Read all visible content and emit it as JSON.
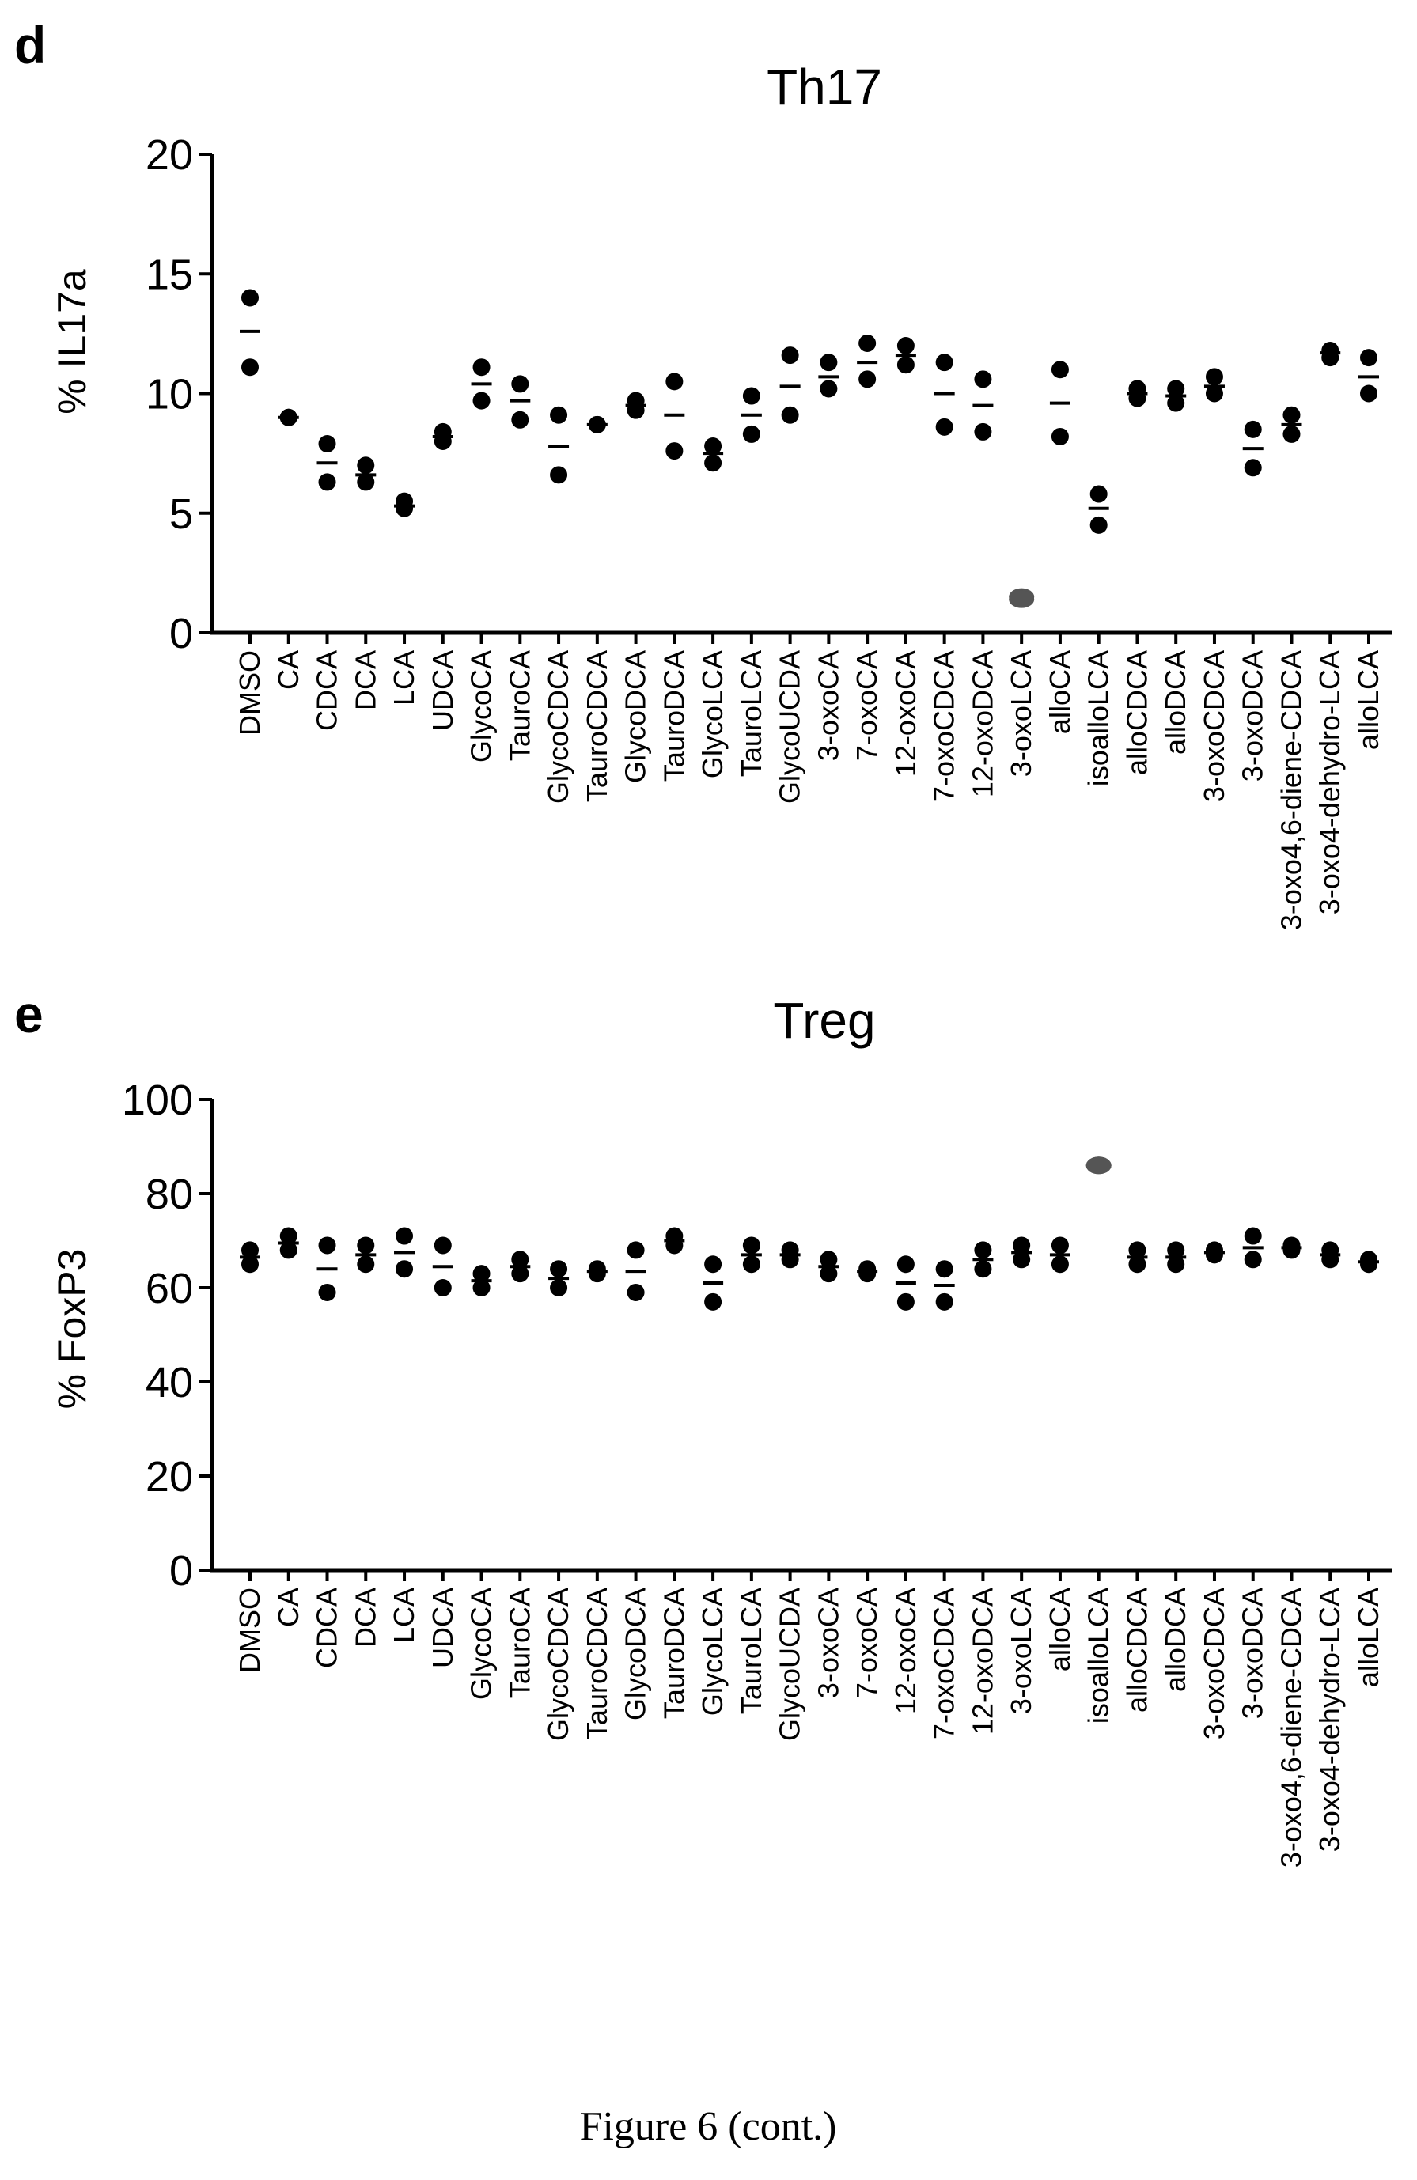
{
  "caption": "Figure 6 (cont.)",
  "chart_data": [
    {
      "panel": "d",
      "type": "scatter",
      "title": "Th17",
      "ylabel": "% IL17a",
      "ylim": [
        0,
        20
      ],
      "yticks": [
        0,
        5,
        10,
        15,
        20
      ],
      "categories": [
        "DMSO",
        "CA",
        "CDCA",
        "DCA",
        "LCA",
        "UDCA",
        "GlycoCA",
        "TauroCA",
        "GlycoCDCA",
        "TauroCDCA",
        "GlycoDCA",
        "TauroDCA",
        "GlycoLCA",
        "TauroLCA",
        "GlycoUCDA",
        "3-oxoCA",
        "7-oxoCA",
        "12-oxoCA",
        "7-oxoCDCA",
        "12-oxoDCA",
        "3-oxoLCA",
        "alloCA",
        "isoalloLCA",
        "alloCDCA",
        "alloDCA",
        "3-oxoCDCA",
        "3-oxoDCA",
        "3-oxo4,6-diene-CDCA",
        "3-oxo4-dehydro-LCA",
        "alloLCA"
      ],
      "highlight": [
        "3-oxoLCA"
      ],
      "highlight_color": "#555555",
      "series": [
        {
          "values": [
            [
              14.0,
              11.1
            ],
            [
              9.0,
              9.0
            ],
            [
              7.9,
              6.3
            ],
            [
              7.0,
              6.3
            ],
            [
              5.5,
              5.2
            ],
            [
              8.4,
              8.0
            ],
            [
              11.1,
              9.7
            ],
            [
              10.4,
              8.9
            ],
            [
              9.1,
              6.6
            ],
            [
              8.7,
              8.7
            ],
            [
              9.7,
              9.3
            ],
            [
              10.5,
              7.6
            ],
            [
              7.8,
              7.1
            ],
            [
              9.9,
              8.3
            ],
            [
              11.6,
              9.1
            ],
            [
              11.3,
              10.2
            ],
            [
              12.1,
              10.6
            ],
            [
              12.0,
              11.2
            ],
            [
              11.3,
              8.6
            ],
            [
              10.6,
              8.4
            ],
            [
              1.5,
              1.4
            ],
            [
              11.0,
              8.2
            ],
            [
              5.8,
              4.5
            ],
            [
              10.2,
              9.8
            ],
            [
              10.2,
              9.6
            ],
            [
              10.7,
              10.0
            ],
            [
              8.5,
              6.9
            ],
            [
              9.1,
              8.3
            ],
            [
              11.8,
              11.5
            ],
            [
              11.5,
              10.0
            ]
          ]
        },
        {
          "name": "",
          "values": [
            12.6,
            9.0,
            7.1,
            6.6,
            5.3,
            8.2,
            10.4,
            9.7,
            7.8,
            8.7,
            9.5,
            9.1,
            7.5,
            9.1,
            10.3,
            10.7,
            11.3,
            11.6,
            10.0,
            9.5,
            1.5,
            9.6,
            5.2,
            10.0,
            9.9,
            10.3,
            7.7,
            8.7,
            11.7,
            10.7
          ]
        }
      ]
    },
    {
      "panel": "e",
      "type": "scatter",
      "title": "Treg",
      "ylabel": "% FoxP3",
      "ylim": [
        0,
        100
      ],
      "yticks": [
        0,
        20,
        40,
        60,
        80,
        100
      ],
      "categories": [
        "DMSO",
        "CA",
        "CDCA",
        "DCA",
        "LCA",
        "UDCA",
        "GlycoCA",
        "TauroCA",
        "GlycoCDCA",
        "TauroCDCA",
        "GlycoDCA",
        "TauroDCA",
        "GlycoLCA",
        "TauroLCA",
        "GlycoUCDA",
        "3-oxoCA",
        "7-oxoCA",
        "12-oxoCA",
        "7-oxoCDCA",
        "12-oxoDCA",
        "3-oxoLCA",
        "alloCA",
        "isoalloLCA",
        "alloCDCA",
        "alloDCA",
        "3-oxoCDCA",
        "3-oxoDCA",
        "3-oxo4,6-diene-CDCA",
        "3-oxo4-dehydro-LCA",
        "alloLCA"
      ],
      "highlight": [
        "isoalloLCA"
      ],
      "highlight_color": "#555555",
      "series": [
        {
          "values": [
            [
              68,
              65
            ],
            [
              71,
              68
            ],
            [
              69,
              59
            ],
            [
              69,
              65
            ],
            [
              71,
              64
            ],
            [
              69,
              60
            ],
            [
              63,
              60
            ],
            [
              66,
              63
            ],
            [
              64,
              60
            ],
            [
              64,
              63
            ],
            [
              68,
              59
            ],
            [
              71,
              69
            ],
            [
              65,
              57
            ],
            [
              69,
              65
            ],
            [
              68,
              66
            ],
            [
              66,
              63
            ],
            [
              64,
              63
            ],
            [
              65,
              57
            ],
            [
              64,
              57
            ],
            [
              68,
              64
            ],
            [
              69,
              66
            ],
            [
              69,
              65
            ],
            [
              86,
              86
            ],
            [
              68,
              65
            ],
            [
              68,
              65
            ],
            [
              68,
              67
            ],
            [
              71,
              66
            ],
            [
              69,
              68
            ],
            [
              68,
              66
            ],
            [
              66,
              65
            ]
          ]
        },
        {
          "name": "",
          "values": [
            66.5,
            69.5,
            64,
            67,
            67.5,
            64.5,
            61.5,
            64.5,
            62,
            63.5,
            63.5,
            70,
            61,
            67,
            67,
            64.5,
            63.5,
            61,
            60.5,
            66,
            67.5,
            67,
            86,
            66.5,
            66.5,
            67.5,
            68.5,
            68.5,
            67,
            65.5
          ]
        }
      ]
    }
  ]
}
